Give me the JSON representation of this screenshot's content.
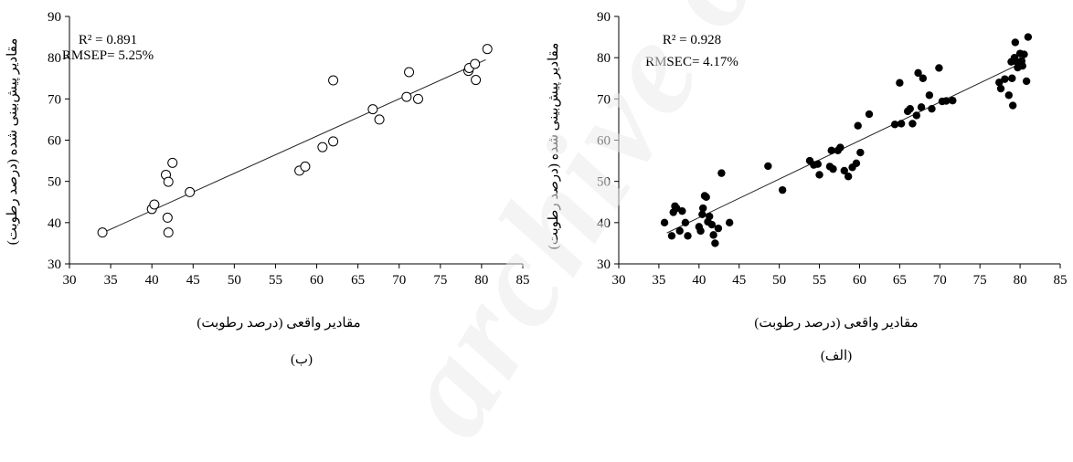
{
  "chart_data": [
    {
      "type": "scatter",
      "panel_label": "(ب)",
      "xlabel": "مقادیر واقعی (درصد رطوبت)",
      "ylabel": "مقادیر پیش‌بینی شده (درصد رطوبت)",
      "xlim": [
        30,
        85
      ],
      "ylim": [
        30,
        90
      ],
      "xticks": [
        30,
        35,
        40,
        45,
        50,
        55,
        60,
        65,
        70,
        75,
        80,
        85
      ],
      "yticks": [
        30,
        40,
        50,
        60,
        70,
        80,
        90
      ],
      "annotations": [
        "R² = 0.891",
        "RMSEP= 5.25%"
      ],
      "marker": "open-circle",
      "trendline": {
        "x1": 34,
        "y1": 37.5,
        "x2": 80.5,
        "y2": 79.5
      },
      "points": [
        [
          34.0,
          37.6
        ],
        [
          40.0,
          43.3
        ],
        [
          40.3,
          44.4
        ],
        [
          41.7,
          51.6
        ],
        [
          42.0,
          49.9
        ],
        [
          41.9,
          41.2
        ],
        [
          42.0,
          37.6
        ],
        [
          42.5,
          54.5
        ],
        [
          44.6,
          47.4
        ],
        [
          57.9,
          52.6
        ],
        [
          58.6,
          53.6
        ],
        [
          60.7,
          58.3
        ],
        [
          62.0,
          59.7
        ],
        [
          62.0,
          74.5
        ],
        [
          66.8,
          67.5
        ],
        [
          67.6,
          65.0
        ],
        [
          70.9,
          70.5
        ],
        [
          71.2,
          76.5
        ],
        [
          72.3,
          70.0
        ],
        [
          78.4,
          76.8
        ],
        [
          78.5,
          77.5
        ],
        [
          79.2,
          78.5
        ],
        [
          79.3,
          74.6
        ],
        [
          80.7,
          82.1
        ]
      ]
    },
    {
      "type": "scatter",
      "panel_label": "(الف)",
      "xlabel": "مقادیر واقعی (درصد رطوبت)",
      "ylabel": "مقادیر پیش‌بینی شده (درصد رطوبت)",
      "xlim": [
        30,
        85
      ],
      "ylim": [
        30,
        90
      ],
      "xticks": [
        30,
        35,
        40,
        45,
        50,
        55,
        60,
        65,
        70,
        75,
        80,
        85
      ],
      "yticks": [
        30,
        40,
        50,
        60,
        70,
        80,
        90
      ],
      "annotations": [
        "R² = 0.928",
        "RMSEC= 4.17%"
      ],
      "marker": "filled-circle",
      "trendline": {
        "x1": 36,
        "y1": 37.5,
        "x2": 80.5,
        "y2": 79.0
      },
      "points": [
        [
          35.7,
          40.0
        ],
        [
          36.6,
          36.8
        ],
        [
          36.8,
          42.5
        ],
        [
          37.0,
          44.0
        ],
        [
          37.2,
          43.5
        ],
        [
          37.6,
          38.0
        ],
        [
          37.9,
          42.8
        ],
        [
          38.3,
          40.0
        ],
        [
          38.6,
          36.8
        ],
        [
          40.0,
          39.0
        ],
        [
          40.2,
          38.0
        ],
        [
          40.4,
          42.0
        ],
        [
          40.5,
          43.5
        ],
        [
          40.7,
          46.5
        ],
        [
          40.9,
          46.2
        ],
        [
          41.1,
          40.2
        ],
        [
          41.3,
          41.5
        ],
        [
          41.6,
          39.5
        ],
        [
          41.8,
          37.0
        ],
        [
          42.0,
          35.0
        ],
        [
          42.4,
          38.6
        ],
        [
          42.8,
          52.0
        ],
        [
          43.8,
          40.0
        ],
        [
          48.6,
          53.7
        ],
        [
          50.4,
          47.9
        ],
        [
          53.8,
          55.0
        ],
        [
          54.3,
          54.0
        ],
        [
          54.8,
          54.2
        ],
        [
          55.0,
          51.6
        ],
        [
          56.3,
          53.6
        ],
        [
          56.5,
          57.5
        ],
        [
          56.7,
          53.0
        ],
        [
          57.3,
          57.5
        ],
        [
          57.6,
          58.2
        ],
        [
          58.1,
          52.6
        ],
        [
          58.6,
          51.2
        ],
        [
          59.1,
          53.4
        ],
        [
          59.6,
          54.4
        ],
        [
          59.8,
          63.5
        ],
        [
          60.1,
          57.0
        ],
        [
          61.2,
          66.3
        ],
        [
          64.4,
          63.8
        ],
        [
          65.0,
          73.9
        ],
        [
          65.2,
          64.0
        ],
        [
          66.0,
          67.0
        ],
        [
          66.3,
          67.6
        ],
        [
          66.6,
          64.0
        ],
        [
          67.1,
          66.0
        ],
        [
          67.3,
          76.3
        ],
        [
          67.7,
          68.0
        ],
        [
          67.9,
          75.0
        ],
        [
          68.7,
          70.9
        ],
        [
          69.0,
          67.6
        ],
        [
          69.9,
          77.5
        ],
        [
          70.3,
          69.4
        ],
        [
          70.8,
          69.5
        ],
        [
          71.6,
          69.6
        ],
        [
          77.4,
          74.0
        ],
        [
          77.6,
          72.5
        ],
        [
          78.1,
          74.8
        ],
        [
          78.6,
          70.9
        ],
        [
          78.9,
          79.0
        ],
        [
          79.0,
          75.0
        ],
        [
          79.1,
          68.4
        ],
        [
          79.3,
          80.0
        ],
        [
          79.4,
          83.7
        ],
        [
          79.6,
          79.0
        ],
        [
          79.7,
          77.6
        ],
        [
          80.0,
          81.0
        ],
        [
          80.2,
          79.2
        ],
        [
          80.3,
          78.0
        ],
        [
          80.5,
          80.8
        ],
        [
          80.8,
          74.3
        ],
        [
          81.0,
          85.0
        ]
      ]
    }
  ],
  "watermark_text": "archive of"
}
